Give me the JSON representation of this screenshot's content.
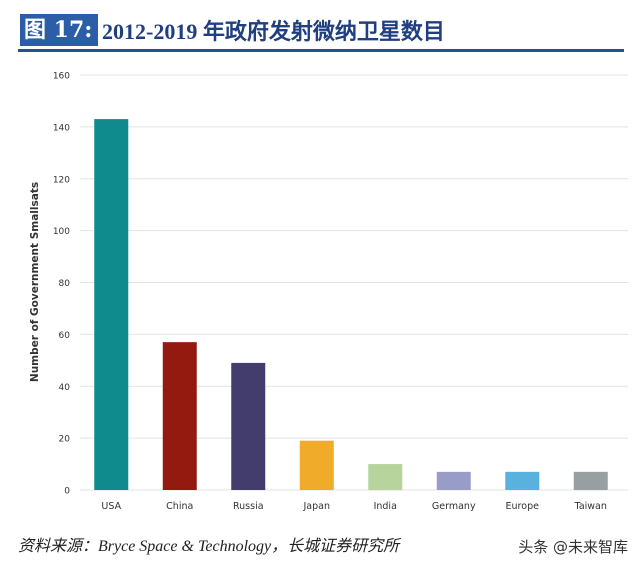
{
  "header": {
    "figure_label": "图 17:",
    "title": "2012-2019 年政府发射微纳卫星数目"
  },
  "source": "资料来源：Bryce Space & Technology，长城证券研究所",
  "watermark": "头条 @未来智库",
  "chart_data": {
    "type": "bar",
    "title": "",
    "xlabel": "",
    "ylabel": "Number of Government Smallsats",
    "ylim": [
      0,
      160
    ],
    "yticks": [
      0,
      20,
      40,
      60,
      80,
      100,
      120,
      140,
      160
    ],
    "grid": true,
    "categories": [
      "USA",
      "China",
      "Russia",
      "Japan",
      "India",
      "Germany",
      "Europe",
      "Taiwan"
    ],
    "values": [
      143,
      57,
      49,
      19,
      10,
      7,
      7,
      7
    ],
    "colors": [
      "#0f8b8d",
      "#941a10",
      "#433d6e",
      "#f0ab2a",
      "#b6d49b",
      "#9a9cc8",
      "#58b2dd",
      "#979fa1"
    ]
  }
}
